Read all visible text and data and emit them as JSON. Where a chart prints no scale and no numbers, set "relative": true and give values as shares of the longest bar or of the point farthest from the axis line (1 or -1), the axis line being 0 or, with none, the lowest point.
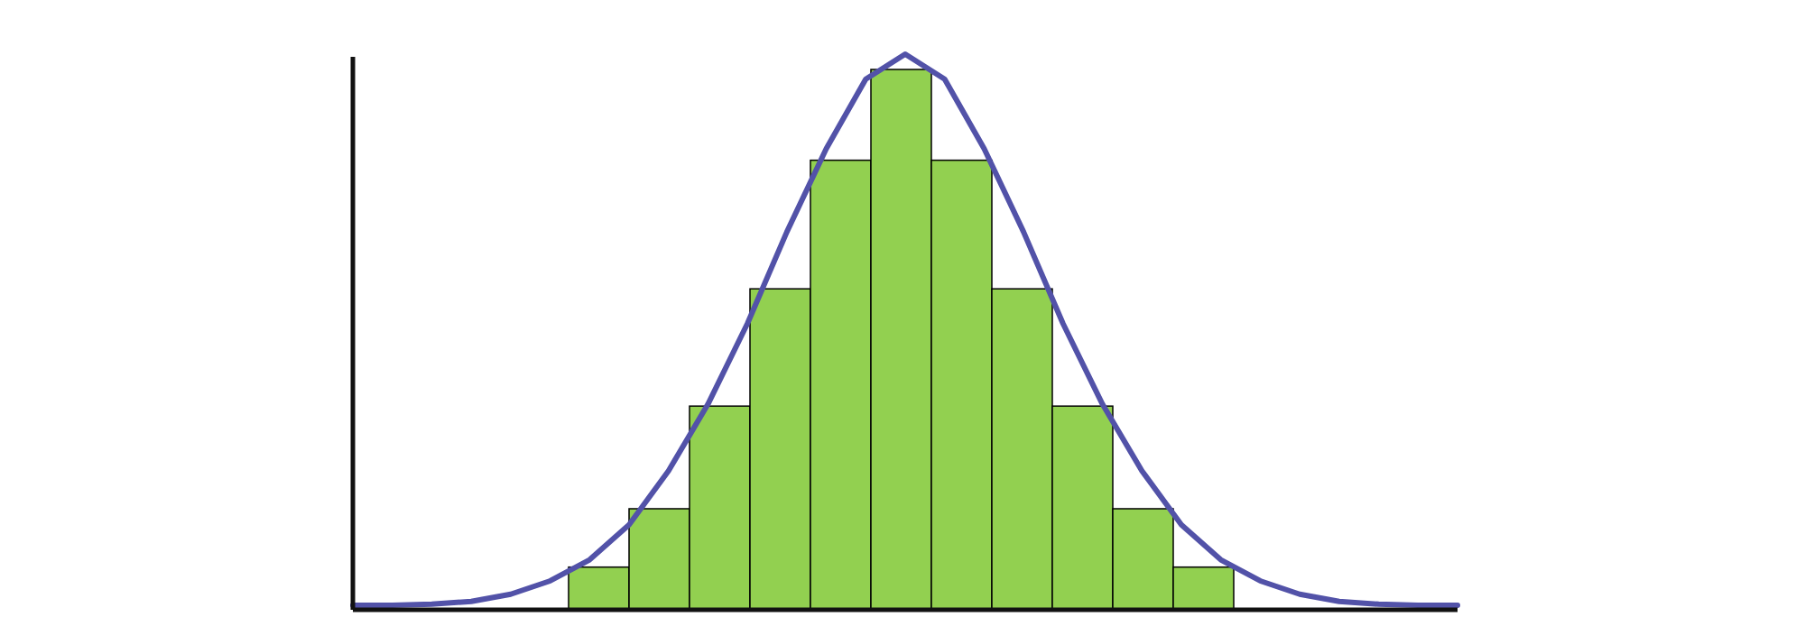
{
  "chart_data": [
    {
      "type": "bar",
      "relative": true,
      "color": "#92d050",
      "categories": [
        null,
        null,
        null,
        null,
        null,
        null,
        null,
        null,
        null,
        null,
        null
      ],
      "values": [
        0.079,
        0.187,
        0.377,
        0.594,
        0.832,
        1,
        0.832,
        0.594,
        0.377,
        0.187,
        0.079
      ]
    },
    {
      "type": "line",
      "relative": true,
      "color": "#5252a8",
      "categories": [
        null,
        null,
        null,
        null,
        null,
        null,
        null,
        null,
        null,
        null,
        null,
        null,
        null,
        null,
        null,
        null,
        null,
        null,
        null,
        null,
        null,
        null,
        null,
        null,
        null,
        null,
        null,
        null,
        null
      ],
      "values": [
        0.008,
        0.008,
        0.01,
        0.015,
        0.028,
        0.052,
        0.09,
        0.153,
        0.25,
        0.37,
        0.515,
        0.68,
        0.83,
        0.955,
        1,
        0.955,
        0.83,
        0.68,
        0.515,
        0.37,
        0.25,
        0.153,
        0.09,
        0.052,
        0.028,
        0.015,
        0.01,
        0.008,
        0.008
      ]
    }
  ]
}
